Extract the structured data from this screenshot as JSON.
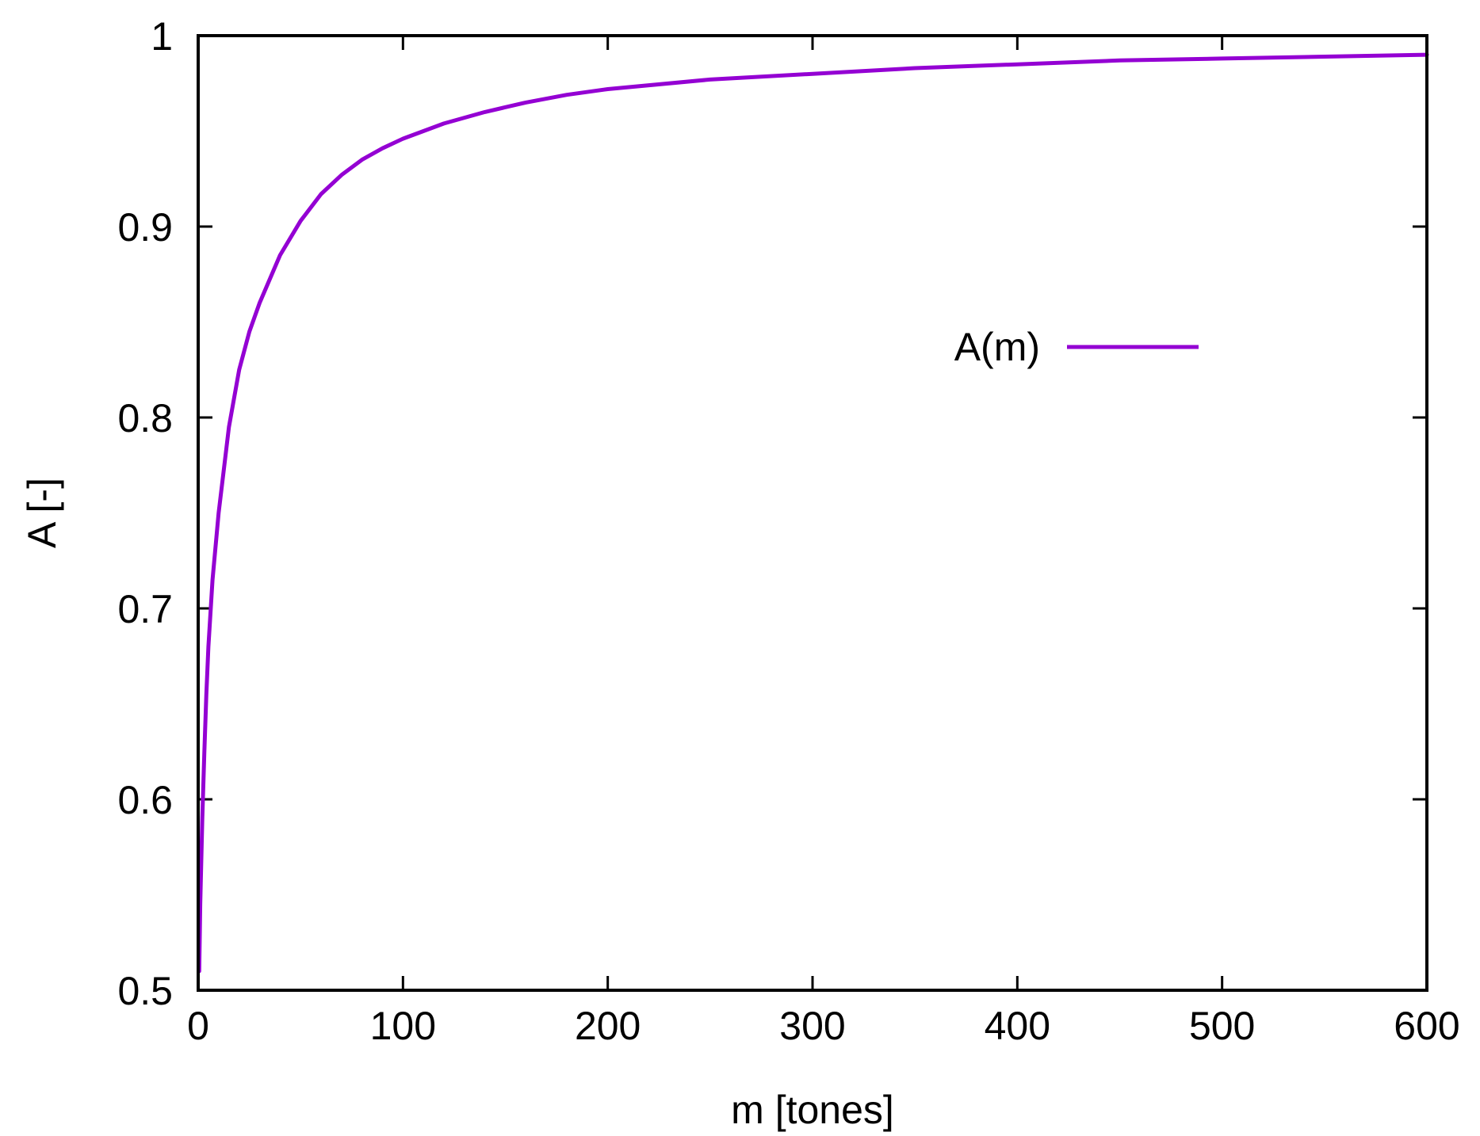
{
  "chart_data": {
    "type": "line",
    "xlabel": "m  [tones]",
    "ylabel": "A  [-]",
    "xlim": [
      0,
      600
    ],
    "ylim": [
      0.5,
      1
    ],
    "xticks": [
      "0",
      "100",
      "200",
      "300",
      "400",
      "500",
      "600"
    ],
    "yticks": [
      "0.5",
      "0.6",
      "0.7",
      "0.8",
      "0.9",
      "1"
    ],
    "grid": false,
    "legend_position": "upper-right-inside",
    "series_color": "#9400D3",
    "series": [
      {
        "name": "A(m)",
        "x": [
          0.5,
          1,
          2,
          3,
          4,
          5,
          7,
          10,
          15,
          20,
          25,
          30,
          40,
          50,
          60,
          70,
          80,
          90,
          100,
          120,
          140,
          160,
          180,
          200,
          250,
          300,
          350,
          400,
          450,
          500,
          550,
          600
        ],
        "y": [
          0.51,
          0.545,
          0.59,
          0.625,
          0.655,
          0.68,
          0.715,
          0.75,
          0.795,
          0.825,
          0.845,
          0.86,
          0.885,
          0.903,
          0.917,
          0.927,
          0.935,
          0.941,
          0.946,
          0.954,
          0.96,
          0.965,
          0.969,
          0.972,
          0.977,
          0.98,
          0.983,
          0.985,
          0.987,
          0.988,
          0.989,
          0.99
        ]
      }
    ]
  }
}
